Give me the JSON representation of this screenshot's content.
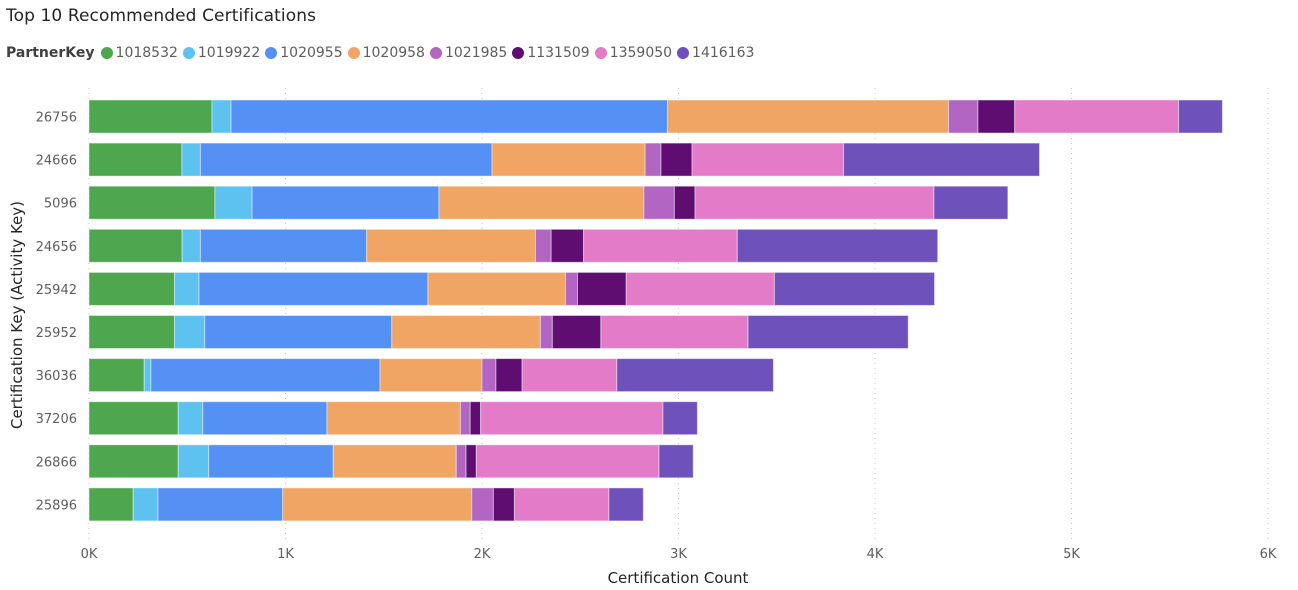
{
  "chart_data": {
    "type": "bar",
    "orientation": "horizontal",
    "stacked": true,
    "title": "Top 10 Recommended Certifications",
    "xlabel": "Certification Count",
    "ylabel": "Certification Key (Activity Key)",
    "legend_title": "PartnerKey",
    "legend_position": "top-left",
    "xlim": [
      0,
      6000
    ],
    "x_ticks": [
      0,
      1000,
      2000,
      3000,
      4000,
      5000,
      6000
    ],
    "x_tick_labels": [
      "0K",
      "1K",
      "2K",
      "3K",
      "4K",
      "5K",
      "6K"
    ],
    "grid": true,
    "categories": [
      "26756",
      "24666",
      "5096",
      "24656",
      "25942",
      "25952",
      "36036",
      "37206",
      "26866",
      "25896"
    ],
    "series": [
      {
        "name": "1018532",
        "color": "#4ea74e",
        "values": [
          626,
          473,
          641,
          474,
          435,
          435,
          281,
          454,
          454,
          225
        ]
      },
      {
        "name": "1019922",
        "color": "#5dc2ef",
        "values": [
          97,
          94,
          189,
          93,
          125,
          154,
          34,
          125,
          155,
          126
        ]
      },
      {
        "name": "1020955",
        "color": "#5590f5",
        "values": [
          2221,
          1484,
          951,
          846,
          1165,
          952,
          1166,
          632,
          634,
          635
        ]
      },
      {
        "name": "1020958",
        "color": "#f1a565",
        "values": [
          1430,
          779,
          1043,
          859,
          700,
          756,
          519,
          679,
          626,
          962
        ]
      },
      {
        "name": "1021985",
        "color": "#b265c2",
        "values": [
          150,
          81,
          155,
          80,
          61,
          61,
          71,
          50,
          50,
          110
        ]
      },
      {
        "name": "1131509",
        "color": "#5f0d71",
        "values": [
          187,
          158,
          105,
          165,
          248,
          247,
          133,
          53,
          52,
          107
        ]
      },
      {
        "name": "1359050",
        "color": "#e37bc9",
        "values": [
          834,
          771,
          1216,
          782,
          754,
          749,
          482,
          928,
          930,
          481
        ]
      },
      {
        "name": "1416163",
        "color": "#6e51ba",
        "values": [
          223,
          997,
          376,
          1020,
          815,
          815,
          797,
          175,
          174,
          175
        ]
      }
    ]
  }
}
